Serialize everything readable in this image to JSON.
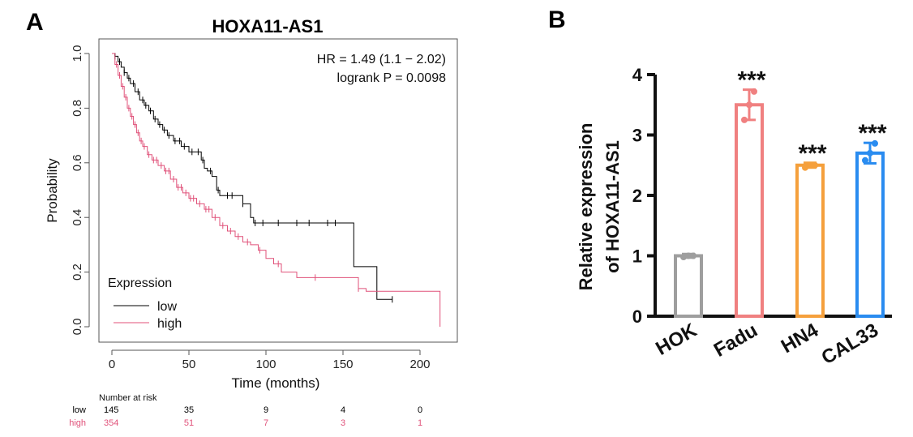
{
  "panels": {
    "a_letter": "A",
    "b_letter": "B"
  },
  "chart_data": [
    {
      "type": "line",
      "subtype": "kaplan-meier",
      "title": "HOXA11-AS1",
      "xlabel": "Time (months)",
      "ylabel": "Probability",
      "xlim": [
        0,
        215
      ],
      "ylim": [
        0,
        1.0
      ],
      "x_ticks": [
        "0",
        "50",
        "100",
        "150",
        "200"
      ],
      "y_ticks": [
        "0.0",
        "0.2",
        "0.4",
        "0.6",
        "0.8",
        "1.0"
      ],
      "annotations": {
        "hr": "HR = 1.49 (1.1 − 2.02)",
        "logrank": "logrank P = 0.0098"
      },
      "legend": {
        "title": "Expression",
        "position": "bottom-left",
        "entries": [
          {
            "label": "low",
            "color": "#000000"
          },
          {
            "label": "high",
            "color": "#e0527a"
          }
        ]
      },
      "series": [
        {
          "name": "low",
          "color": "#000000",
          "x": [
            0,
            2,
            4,
            6,
            8,
            10,
            12,
            15,
            18,
            21,
            24,
            27,
            30,
            33,
            36,
            40,
            45,
            50,
            55,
            58,
            60,
            62,
            65,
            68,
            70,
            75,
            80,
            85,
            90,
            92,
            100,
            110,
            120,
            130,
            140,
            155,
            157,
            162,
            172,
            182
          ],
          "y": [
            1.0,
            0.99,
            0.97,
            0.95,
            0.93,
            0.91,
            0.89,
            0.86,
            0.83,
            0.81,
            0.79,
            0.76,
            0.74,
            0.72,
            0.7,
            0.68,
            0.66,
            0.64,
            0.64,
            0.61,
            0.58,
            0.57,
            0.55,
            0.5,
            0.48,
            0.48,
            0.48,
            0.45,
            0.4,
            0.38,
            0.38,
            0.38,
            0.38,
            0.38,
            0.38,
            0.38,
            0.22,
            0.22,
            0.1,
            0.1
          ],
          "censor_x": [
            2,
            5,
            8,
            11,
            14,
            17,
            20,
            22,
            25,
            28,
            31,
            34,
            37,
            41,
            44,
            47,
            52,
            56,
            59,
            64,
            69,
            75,
            78,
            85,
            93,
            98,
            108,
            120,
            128,
            140,
            145,
            182
          ]
        },
        {
          "name": "high",
          "color": "#e0527a",
          "x": [
            0,
            2,
            4,
            6,
            8,
            10,
            12,
            14,
            16,
            18,
            20,
            23,
            26,
            30,
            34,
            38,
            42,
            46,
            50,
            55,
            60,
            65,
            70,
            75,
            80,
            85,
            90,
            95,
            100,
            105,
            110,
            120,
            130,
            140,
            155,
            160,
            165,
            172,
            180,
            200,
            213
          ],
          "y": [
            1.0,
            0.96,
            0.92,
            0.88,
            0.84,
            0.8,
            0.77,
            0.74,
            0.71,
            0.68,
            0.66,
            0.63,
            0.61,
            0.59,
            0.57,
            0.54,
            0.51,
            0.49,
            0.47,
            0.45,
            0.43,
            0.4,
            0.37,
            0.35,
            0.33,
            0.31,
            0.3,
            0.28,
            0.25,
            0.23,
            0.2,
            0.18,
            0.18,
            0.18,
            0.18,
            0.14,
            0.13,
            0.13,
            0.13,
            0.13,
            0.0
          ],
          "censor_x": [
            3,
            5,
            7,
            9,
            11,
            13,
            15,
            17,
            19,
            21,
            24,
            27,
            29,
            32,
            35,
            37,
            40,
            43,
            45,
            48,
            51,
            53,
            57,
            61,
            63,
            67,
            72,
            77,
            82,
            88,
            96,
            108,
            132,
            160
          ]
        }
      ],
      "risk_table": {
        "header": "Number at risk",
        "rows": [
          {
            "label": "low",
            "color": "#000000",
            "values": [
              "145",
              "35",
              "9",
              "4",
              "0"
            ]
          },
          {
            "label": "high",
            "color": "#e0527a",
            "values": [
              "354",
              "51",
              "7",
              "3",
              "1"
            ]
          }
        ]
      }
    },
    {
      "type": "bar",
      "categories": [
        "HOK",
        "Fadu",
        "HN4",
        "CAL33"
      ],
      "values": [
        1.0,
        3.5,
        2.5,
        2.7
      ],
      "errors": [
        0.03,
        0.25,
        0.04,
        0.17
      ],
      "points": [
        [
          0.98,
          1.0,
          1.0
        ],
        [
          3.25,
          3.5,
          3.72
        ],
        [
          2.46,
          2.5,
          2.5
        ],
        [
          2.58,
          2.7,
          2.86
        ]
      ],
      "colors": [
        "#9e9e9e",
        "#f08080",
        "#f5a03c",
        "#2a8cf0"
      ],
      "significance": [
        "",
        "***",
        "***",
        "***"
      ],
      "ylabel_line1": "Relative expression",
      "ylabel_line2": "of  HOXA11-AS1",
      "ylim": [
        0,
        4
      ],
      "y_ticks": [
        "0",
        "1",
        "2",
        "3",
        "4"
      ]
    }
  ]
}
